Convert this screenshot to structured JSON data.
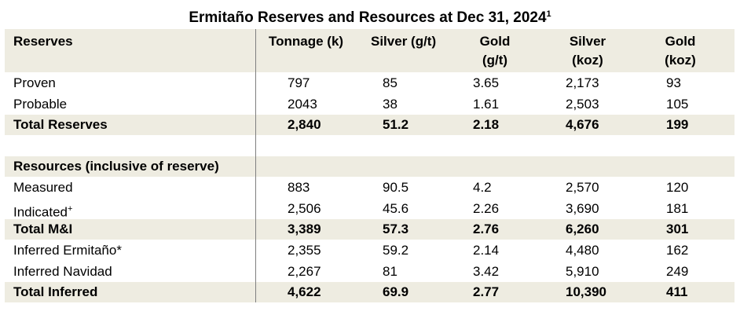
{
  "title": {
    "text": "Ermitaño Reserves and Resources at Dec 31, 2024",
    "footnote_mark": "1"
  },
  "header": {
    "label": "Reserves",
    "tonnage": "Tonnage (k)",
    "silver_gt": "Silver (g/t)",
    "gold_gt_line1": "Gold",
    "gold_gt_line2": "(g/t)",
    "silver_koz_line1": "Silver",
    "silver_koz_line2": "(koz)",
    "gold_koz_line1": "Gold",
    "gold_koz_line2": "(koz)"
  },
  "reserves": {
    "proven": {
      "label": "Proven",
      "tonnage": "797",
      "silver_gt": "85",
      "gold_gt": "3.65",
      "silver_koz": "2,173",
      "gold_koz": "93"
    },
    "probable": {
      "label": "Probable",
      "tonnage": "2043",
      "silver_gt": "38",
      "gold_gt": "1.61",
      "silver_koz": "2,503",
      "gold_koz": "105"
    },
    "total": {
      "label": "Total Reserves",
      "tonnage": "2,840",
      "silver_gt": "51.2",
      "gold_gt": "2.18",
      "silver_koz": "4,676",
      "gold_koz": "199"
    }
  },
  "resources": {
    "section_label": "Resources (inclusive of reserve)",
    "measured": {
      "label": "Measured",
      "tonnage": "883",
      "silver_gt": "90.5",
      "gold_gt": "4.2",
      "silver_koz": "2,570",
      "gold_koz": "120"
    },
    "indicated": {
      "label": "Indicated",
      "mark": "+",
      "tonnage": "2,506",
      "silver_gt": "45.6",
      "gold_gt": "2.26",
      "silver_koz": "3,690",
      "gold_koz": "181"
    },
    "total_mi": {
      "label": "Total M&I",
      "tonnage": "3,389",
      "silver_gt": "57.3",
      "gold_gt": "2.76",
      "silver_koz": "6,260",
      "gold_koz": "301"
    },
    "inferred_ermitano": {
      "label": "Inferred Ermitaño*",
      "tonnage": "2,355",
      "silver_gt": "59.2",
      "gold_gt": "2.14",
      "silver_koz": "4,480",
      "gold_koz": "162"
    },
    "inferred_navidad": {
      "label": "Inferred Navidad",
      "tonnage": "2,267",
      "silver_gt": "81",
      "gold_gt": "3.42",
      "silver_koz": "5,910",
      "gold_koz": "249"
    },
    "total_inferred": {
      "label": "Total Inferred",
      "tonnage": "4,622",
      "silver_gt": "69.9",
      "gold_gt": "2.77",
      "silver_koz": "10,390",
      "gold_koz": "411"
    }
  }
}
